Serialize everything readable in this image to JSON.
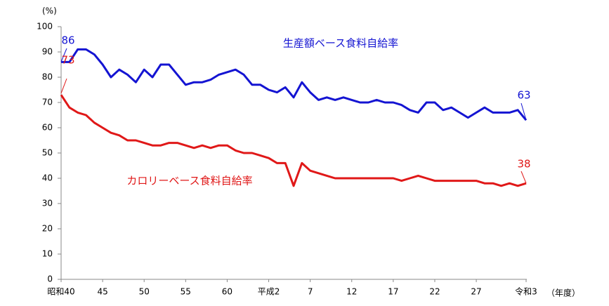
{
  "chart_data": {
    "type": "line",
    "y_label": "(%)",
    "x_label": "（年度）",
    "categories": [
      "昭和40",
      null,
      null,
      null,
      null,
      "45",
      null,
      null,
      null,
      null,
      "50",
      null,
      null,
      null,
      null,
      "55",
      null,
      null,
      null,
      null,
      "60",
      null,
      null,
      null,
      null,
      "平成2",
      null,
      null,
      null,
      null,
      "7",
      null,
      null,
      null,
      null,
      "12",
      null,
      null,
      null,
      null,
      "17",
      null,
      null,
      null,
      null,
      "22",
      null,
      null,
      null,
      null,
      "27",
      null,
      null,
      null,
      null,
      null,
      "令和3"
    ],
    "series": [
      {
        "name": "生産額ベース食料自給率",
        "color": "#1414d2",
        "values": [
          86,
          86,
          91,
          91,
          89,
          85,
          80,
          83,
          81,
          78,
          83,
          80,
          85,
          85,
          81,
          77,
          78,
          78,
          79,
          81,
          82,
          83,
          81,
          77,
          77,
          75,
          74,
          76,
          72,
          78,
          74,
          71,
          72,
          71,
          72,
          71,
          70,
          70,
          71,
          70,
          70,
          69,
          67,
          66,
          70,
          70,
          67,
          68,
          66,
          64,
          66,
          68,
          66,
          66,
          66,
          67,
          63
        ]
      },
      {
        "name": "カロリーベース食料自給率",
        "color": "#e01818",
        "values": [
          73,
          68,
          66,
          65,
          62,
          60,
          58,
          57,
          55,
          55,
          54,
          53,
          53,
          54,
          54,
          53,
          52,
          53,
          52,
          53,
          53,
          51,
          50,
          50,
          49,
          48,
          46,
          46,
          37,
          46,
          43,
          42,
          41,
          40,
          40,
          40,
          40,
          40,
          40,
          40,
          40,
          39,
          40,
          41,
          40,
          39,
          39,
          39,
          39,
          39,
          39,
          38,
          38,
          37,
          38,
          37,
          38
        ]
      }
    ],
    "ylim": [
      0,
      100
    ],
    "yticks": [
      0,
      10,
      20,
      30,
      40,
      50,
      60,
      70,
      80,
      90,
      100
    ]
  }
}
